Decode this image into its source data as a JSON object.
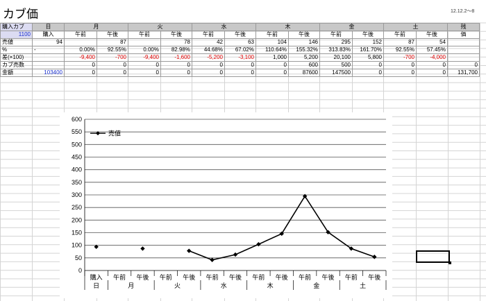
{
  "sheet": {
    "title": "カブ価",
    "date": "12.12.2～8",
    "header": {
      "label_buy": "購入カブ",
      "label_buy_qty": "1100",
      "days": [
        "日",
        "月",
        "火",
        "水",
        "木",
        "金",
        "土"
      ],
      "zan": "残",
      "zan2": "価"
    },
    "subheader": [
      "購入",
      "午前",
      "午後",
      "午前",
      "午後",
      "午前",
      "午後",
      "午前",
      "午後",
      "午前",
      "午後",
      "午前",
      "午後"
    ],
    "rows": [
      {
        "label": "売値",
        "cells": [
          "94",
          "",
          "87",
          "",
          "78",
          "42",
          "63",
          "104",
          "146",
          "295",
          "152",
          "87",
          "54"
        ],
        "last": ""
      },
      {
        "label": "%",
        "cells": [
          "-",
          "0.00%",
          "92.55%",
          "0.00%",
          "82.98%",
          "44.68%",
          "67.02%",
          "110.64%",
          "155.32%",
          "313.83%",
          "161.70%",
          "92.55%",
          "57.45%"
        ],
        "last": ""
      },
      {
        "label": "差(×100)",
        "cells": [
          "",
          "-9,400",
          "-700",
          "-9,400",
          "-1,600",
          "-5,200",
          "-3,100",
          "1,000",
          "5,200",
          "20,100",
          "5,800",
          "-700",
          "-4,000"
        ],
        "last": ""
      },
      {
        "label": "カブ売数",
        "cells": [
          "",
          "0",
          "0",
          "0",
          "0",
          "0",
          "0",
          "0",
          "600",
          "500",
          "0",
          "0",
          "0"
        ],
        "last": "0"
      },
      {
        "label": "金額",
        "cells": [
          "103400",
          "0",
          "0",
          "0",
          "0",
          "0",
          "0",
          "0",
          "87600",
          "147500",
          "0",
          "0",
          "0"
        ],
        "last": "131,700"
      }
    ]
  },
  "chart_data": {
    "type": "line",
    "title": "",
    "xlabel": "",
    "ylabel": "",
    "ylim": [
      0,
      600
    ],
    "yticks": [
      0,
      50,
      100,
      150,
      200,
      250,
      300,
      350,
      400,
      450,
      500,
      550,
      600
    ],
    "categories": [
      "購入",
      "午前",
      "午後",
      "午前",
      "午後",
      "午前",
      "午後",
      "午前",
      "午後",
      "午前",
      "午後",
      "午前",
      "午後"
    ],
    "day_labels": [
      "日",
      "月",
      "火",
      "水",
      "木",
      "金",
      "土"
    ],
    "grid": true,
    "legend_position": "top-left",
    "series": [
      {
        "name": "売値",
        "values": [
          94,
          null,
          87,
          null,
          78,
          42,
          63,
          104,
          146,
          295,
          152,
          87,
          54
        ],
        "color": "#000000"
      }
    ]
  },
  "colors": {
    "header_bg": "#c8c8c8",
    "negative": "#e00000",
    "link_blue": "#1a2fcc",
    "label_bg": "#dcdcf2"
  }
}
